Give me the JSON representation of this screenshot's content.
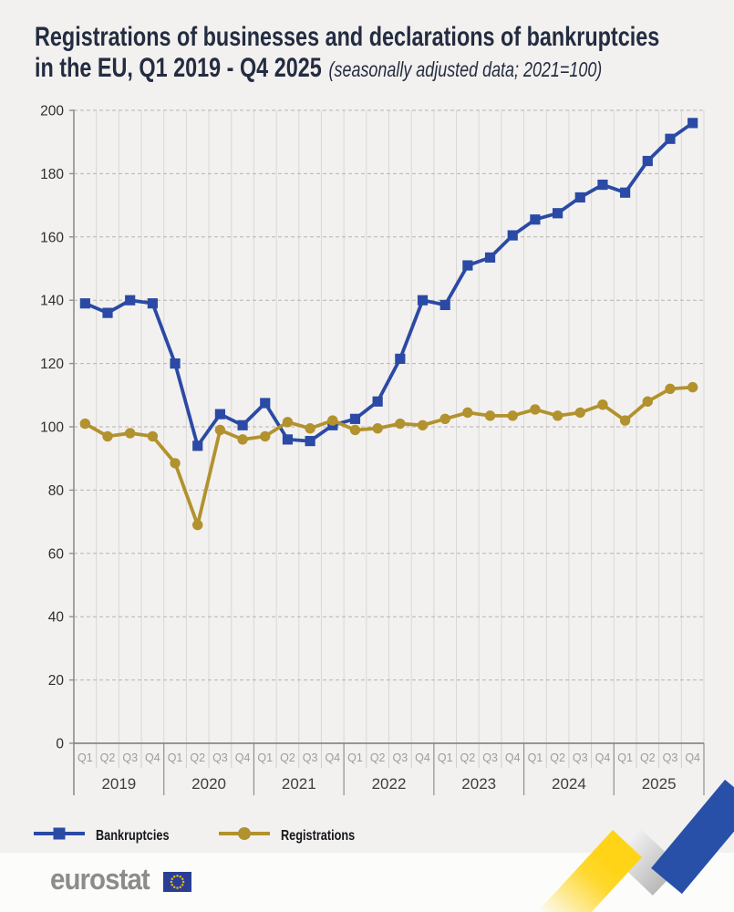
{
  "title": {
    "line1": "Registrations of businesses and declarations of bankruptcies",
    "line2_bold": "in the EU, Q1 2019 - Q4 2025",
    "line2_note": "(seasonally adjusted data; 2021=100)"
  },
  "chart_data": {
    "type": "line",
    "years": [
      "2019",
      "2020",
      "2021",
      "2022",
      "2023",
      "2024",
      "2025"
    ],
    "quarter_labels": [
      "Q1",
      "Q2",
      "Q3",
      "Q4"
    ],
    "yticks": [
      0,
      20,
      40,
      60,
      80,
      100,
      120,
      140,
      160,
      180,
      200
    ],
    "ylim": [
      0,
      200
    ],
    "grid": {
      "horizontal": "dashed",
      "vertical": "solid"
    },
    "legend_position": "bottom-left",
    "series": [
      {
        "name": "Bankruptcies",
        "marker": "square",
        "color": "#2b4aa5",
        "values": [
          139,
          136,
          140,
          139,
          120,
          94,
          104,
          100.5,
          107.5,
          96,
          95.5,
          100.5,
          102.5,
          108,
          121.5,
          140,
          138.5,
          151,
          153.5,
          160.5,
          165.5,
          167.5,
          172.5,
          176.5,
          174,
          184,
          191,
          196
        ]
      },
      {
        "name": "Registrations",
        "marker": "circle",
        "color": "#b2922e",
        "values": [
          101,
          97,
          98,
          97,
          88.5,
          69,
          99,
          96,
          97,
          101.5,
          99.5,
          102,
          99,
          99.5,
          101,
          100.5,
          102.5,
          104.5,
          103.5,
          103.5,
          105.5,
          103.5,
          104.5,
          107,
          102,
          108,
          112,
          112.5
        ]
      }
    ]
  },
  "footer": {
    "logo_text": "eurostat"
  },
  "theme": {
    "bg": "#f2f1ef",
    "footer_bg": "#fcfcfb",
    "title": "#242c41",
    "accent_blue": "#2b4aa5",
    "accent_gold": "#b2922e",
    "grid_vertical": "#d9d8d5",
    "grid_dashed": "#b5b4b2",
    "axis": "#8f8f8d",
    "axis_dark": "#77777a",
    "sep_light": "#cfcecb",
    "tick_label": "#2e2e2e",
    "quarter_label": "#9c9c9c",
    "year_label": "#3e3e3e",
    "ribbon_yellow": "#ffd417",
    "ribbon_gray_light": "#efefef",
    "ribbon_gray_dark": "#b9b9b9",
    "ribbon_blue": "#2850a8",
    "flag_blue": "#2a3f94",
    "flag_star": "#e8b314"
  }
}
